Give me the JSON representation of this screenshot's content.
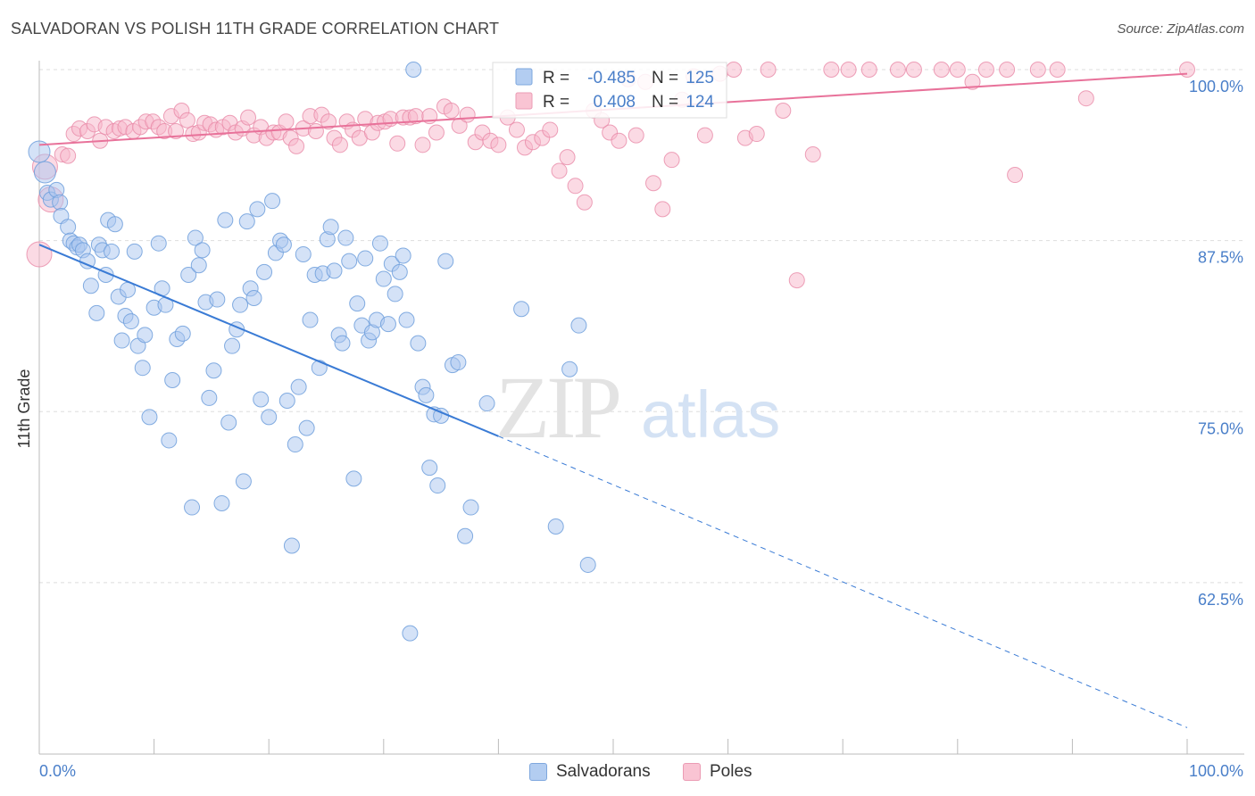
{
  "title": "SALVADORAN VS POLISH 11TH GRADE CORRELATION CHART",
  "source": "Source: ZipAtlas.com",
  "watermark": {
    "zip": "ZIP",
    "atlas": "atlas"
  },
  "colors": {
    "blue_fill": "#a9c6ef",
    "blue_stroke": "#6f9fdc",
    "blue_line": "#3a7bd5",
    "pink_fill": "#f7b6c9",
    "pink_stroke": "#e98aa7",
    "pink_line": "#e8729a",
    "grid": "#dddddd",
    "axis_label": "#4a7fc9"
  },
  "legend_top": {
    "rows": [
      {
        "r_label": "R = ",
        "r_value": "-0.485",
        "n_label": "N = ",
        "n_value": "125",
        "series": "blue"
      },
      {
        "r_label": "R = ",
        "r_value": "0.408",
        "n_label": "N = ",
        "n_value": "124",
        "series": "pink"
      }
    ]
  },
  "legend_bottom": [
    {
      "label": "Salvadorans",
      "series": "blue"
    },
    {
      "label": "Poles",
      "series": "pink"
    }
  ],
  "chart_data": {
    "type": "scatter",
    "title": "SALVADORAN VS POLISH 11TH GRADE CORRELATION CHART",
    "xlabel": "",
    "ylabel": "11th Grade",
    "xlim": [
      0,
      100
    ],
    "ylim": [
      50,
      101.5
    ],
    "x_tick_labels": [
      "0.0%",
      "100.0%"
    ],
    "y_ticks": [
      62.5,
      75.0,
      87.5,
      100.0
    ],
    "y_tick_labels": [
      "62.5%",
      "75.0%",
      "87.5%",
      "100.0%"
    ],
    "grid": true,
    "legend_placement": "top-center",
    "series": [
      {
        "name": "Salvadorans",
        "color": "#a9c6ef",
        "trend": {
          "x0": 0,
          "y0": 87.2,
          "x1": 40,
          "y1": 73.2,
          "dashed_to_x": 100,
          "dashed_to_y": 51.9
        },
        "points": [
          [
            0,
            94.0
          ],
          [
            0.5,
            92.5
          ],
          [
            0.7,
            91.0
          ],
          [
            1.0,
            90.5
          ],
          [
            1.5,
            91.2
          ],
          [
            1.8,
            90.3
          ],
          [
            1.9,
            89.3
          ],
          [
            2.5,
            88.5
          ],
          [
            2.7,
            87.5
          ],
          [
            3.0,
            87.3
          ],
          [
            3.3,
            87.0
          ],
          [
            3.5,
            87.2
          ],
          [
            3.8,
            86.8
          ],
          [
            4.2,
            86.0
          ],
          [
            4.5,
            84.2
          ],
          [
            5.0,
            82.2
          ],
          [
            5.2,
            87.2
          ],
          [
            5.5,
            86.8
          ],
          [
            5.8,
            85.0
          ],
          [
            6.0,
            89.0
          ],
          [
            6.3,
            86.7
          ],
          [
            6.6,
            88.7
          ],
          [
            6.9,
            83.4
          ],
          [
            7.2,
            80.2
          ],
          [
            7.5,
            82.0
          ],
          [
            7.7,
            83.9
          ],
          [
            8.0,
            81.6
          ],
          [
            8.3,
            86.7
          ],
          [
            8.6,
            79.8
          ],
          [
            9.0,
            78.2
          ],
          [
            9.2,
            80.6
          ],
          [
            9.6,
            74.6
          ],
          [
            10.0,
            82.6
          ],
          [
            10.4,
            87.3
          ],
          [
            10.7,
            84.0
          ],
          [
            11.0,
            82.8
          ],
          [
            11.3,
            72.9
          ],
          [
            11.6,
            77.3
          ],
          [
            12.0,
            80.3
          ],
          [
            12.5,
            80.7
          ],
          [
            13.0,
            85.0
          ],
          [
            13.3,
            68.0
          ],
          [
            13.6,
            87.7
          ],
          [
            13.9,
            85.7
          ],
          [
            14.2,
            86.8
          ],
          [
            14.5,
            83.0
          ],
          [
            14.8,
            76.0
          ],
          [
            15.2,
            78.0
          ],
          [
            15.5,
            83.2
          ],
          [
            15.9,
            68.3
          ],
          [
            16.2,
            89.0
          ],
          [
            16.5,
            74.2
          ],
          [
            16.8,
            79.8
          ],
          [
            17.2,
            81.0
          ],
          [
            17.5,
            82.8
          ],
          [
            17.8,
            69.9
          ],
          [
            18.1,
            88.9
          ],
          [
            18.4,
            84.0
          ],
          [
            18.7,
            83.3
          ],
          [
            19.0,
            89.8
          ],
          [
            19.3,
            75.9
          ],
          [
            19.6,
            85.2
          ],
          [
            20.0,
            74.6
          ],
          [
            20.3,
            90.4
          ],
          [
            20.6,
            86.6
          ],
          [
            21.0,
            87.5
          ],
          [
            21.3,
            87.2
          ],
          [
            21.6,
            75.8
          ],
          [
            22.0,
            65.2
          ],
          [
            22.3,
            72.6
          ],
          [
            22.6,
            76.8
          ],
          [
            23.0,
            86.5
          ],
          [
            23.3,
            73.8
          ],
          [
            23.6,
            81.7
          ],
          [
            24.0,
            85.0
          ],
          [
            24.4,
            78.2
          ],
          [
            24.7,
            85.1
          ],
          [
            25.1,
            87.6
          ],
          [
            25.4,
            88.5
          ],
          [
            25.7,
            85.3
          ],
          [
            26.1,
            80.6
          ],
          [
            26.4,
            80.0
          ],
          [
            26.7,
            87.7
          ],
          [
            27.0,
            86.0
          ],
          [
            27.4,
            70.1
          ],
          [
            27.7,
            82.9
          ],
          [
            28.1,
            81.3
          ],
          [
            28.4,
            86.2
          ],
          [
            28.7,
            80.2
          ],
          [
            29.0,
            80.8
          ],
          [
            29.4,
            81.7
          ],
          [
            29.7,
            87.3
          ],
          [
            30.0,
            84.7
          ],
          [
            30.4,
            81.4
          ],
          [
            30.7,
            85.8
          ],
          [
            31.0,
            83.6
          ],
          [
            31.4,
            85.2
          ],
          [
            31.7,
            86.4
          ],
          [
            32.0,
            81.7
          ],
          [
            32.3,
            58.8
          ],
          [
            32.6,
            100.0
          ],
          [
            33.0,
            80.0
          ],
          [
            33.4,
            76.8
          ],
          [
            33.7,
            76.2
          ],
          [
            34.0,
            70.9
          ],
          [
            34.4,
            74.8
          ],
          [
            34.7,
            69.6
          ],
          [
            35.0,
            74.7
          ],
          [
            35.4,
            86.0
          ],
          [
            36.0,
            78.4
          ],
          [
            36.5,
            78.6
          ],
          [
            37.1,
            65.9
          ],
          [
            37.6,
            68.0
          ],
          [
            39.0,
            75.6
          ],
          [
            42.0,
            82.5
          ],
          [
            45.0,
            66.6
          ],
          [
            46.2,
            78.1
          ],
          [
            47.0,
            81.3
          ],
          [
            47.8,
            63.8
          ]
        ]
      },
      {
        "name": "Poles",
        "color": "#f7b6c9",
        "trend": {
          "x0": 0,
          "y0": 94.5,
          "x1": 100,
          "y1": 99.7
        },
        "points": [
          [
            0,
            86.5
          ],
          [
            0.5,
            92.9
          ],
          [
            1.0,
            90.5
          ],
          [
            2.0,
            93.8
          ],
          [
            2.5,
            93.7
          ],
          [
            3.0,
            95.3
          ],
          [
            3.5,
            95.7
          ],
          [
            4.2,
            95.5
          ],
          [
            4.8,
            96.0
          ],
          [
            5.3,
            94.8
          ],
          [
            5.8,
            95.8
          ],
          [
            6.5,
            95.5
          ],
          [
            7.0,
            95.7
          ],
          [
            7.5,
            95.8
          ],
          [
            8.2,
            95.5
          ],
          [
            8.8,
            95.8
          ],
          [
            9.3,
            96.2
          ],
          [
            9.9,
            96.2
          ],
          [
            10.4,
            95.8
          ],
          [
            10.9,
            95.5
          ],
          [
            11.5,
            96.6
          ],
          [
            11.9,
            95.5
          ],
          [
            12.4,
            97.0
          ],
          [
            12.9,
            96.3
          ],
          [
            13.4,
            95.3
          ],
          [
            13.9,
            95.4
          ],
          [
            14.4,
            96.1
          ],
          [
            14.9,
            96.0
          ],
          [
            15.4,
            95.6
          ],
          [
            16.0,
            95.8
          ],
          [
            16.6,
            96.1
          ],
          [
            17.1,
            95.4
          ],
          [
            17.7,
            95.7
          ],
          [
            18.2,
            96.5
          ],
          [
            18.7,
            95.2
          ],
          [
            19.3,
            95.8
          ],
          [
            19.8,
            95.0
          ],
          [
            20.4,
            95.4
          ],
          [
            20.9,
            95.4
          ],
          [
            21.5,
            96.2
          ],
          [
            21.9,
            95.0
          ],
          [
            22.4,
            94.4
          ],
          [
            23.0,
            95.7
          ],
          [
            23.6,
            96.6
          ],
          [
            24.1,
            95.5
          ],
          [
            24.6,
            96.7
          ],
          [
            25.2,
            96.2
          ],
          [
            25.7,
            95.0
          ],
          [
            26.2,
            94.5
          ],
          [
            26.8,
            96.2
          ],
          [
            27.3,
            95.6
          ],
          [
            27.9,
            95.0
          ],
          [
            28.4,
            96.4
          ],
          [
            29.0,
            95.4
          ],
          [
            29.5,
            96.1
          ],
          [
            30.1,
            96.2
          ],
          [
            30.6,
            96.4
          ],
          [
            31.2,
            94.6
          ],
          [
            31.7,
            96.5
          ],
          [
            32.3,
            96.5
          ],
          [
            32.8,
            96.6
          ],
          [
            33.4,
            94.5
          ],
          [
            34.0,
            96.6
          ],
          [
            34.6,
            95.4
          ],
          [
            35.3,
            97.3
          ],
          [
            35.9,
            97.0
          ],
          [
            36.6,
            95.9
          ],
          [
            37.3,
            96.7
          ],
          [
            38.0,
            94.7
          ],
          [
            38.6,
            95.4
          ],
          [
            39.3,
            94.8
          ],
          [
            40.0,
            94.5
          ],
          [
            40.8,
            96.5
          ],
          [
            41.6,
            95.6
          ],
          [
            42.3,
            94.3
          ],
          [
            43.0,
            94.7
          ],
          [
            43.8,
            95.0
          ],
          [
            44.5,
            95.6
          ],
          [
            45.3,
            92.6
          ],
          [
            46.0,
            93.6
          ],
          [
            46.7,
            91.5
          ],
          [
            47.5,
            90.3
          ],
          [
            48.3,
            97.0
          ],
          [
            49.0,
            96.3
          ],
          [
            49.7,
            95.4
          ],
          [
            50.5,
            94.8
          ],
          [
            51.3,
            99.3
          ],
          [
            52.0,
            95.2
          ],
          [
            52.8,
            99.1
          ],
          [
            53.5,
            91.7
          ],
          [
            54.3,
            89.8
          ],
          [
            55.1,
            93.4
          ],
          [
            56.0,
            97.8
          ],
          [
            57.0,
            99.5
          ],
          [
            58.0,
            95.2
          ],
          [
            59.3,
            99.7
          ],
          [
            60.5,
            100.0
          ],
          [
            61.5,
            95.0
          ],
          [
            62.5,
            95.3
          ],
          [
            63.5,
            100.0
          ],
          [
            64.8,
            97.0
          ],
          [
            66.0,
            84.6
          ],
          [
            67.4,
            93.8
          ],
          [
            69.0,
            100.0
          ],
          [
            70.5,
            100.0
          ],
          [
            72.3,
            100.0
          ],
          [
            74.8,
            100.0
          ],
          [
            76.2,
            100.0
          ],
          [
            78.6,
            100.0
          ],
          [
            80.0,
            100.0
          ],
          [
            81.3,
            99.1
          ],
          [
            82.5,
            100.0
          ],
          [
            84.3,
            100.0
          ],
          [
            85.0,
            92.3
          ],
          [
            87.0,
            100.0
          ],
          [
            88.7,
            100.0
          ],
          [
            91.2,
            97.9
          ],
          [
            100.0,
            100.0
          ]
        ]
      }
    ]
  }
}
